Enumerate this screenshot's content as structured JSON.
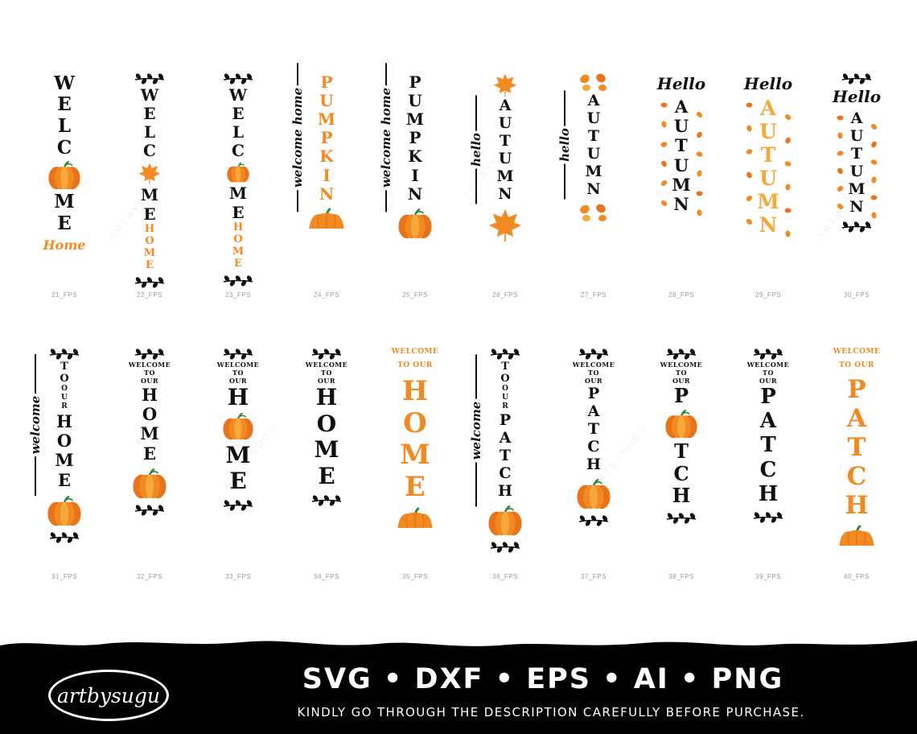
{
  "colors": {
    "black": "#111111",
    "orange": "#f28a22",
    "light_orange": "#f6a93a",
    "deep_orange": "#e8731b",
    "green": "#2e8b35",
    "caption": "#9a9a9a",
    "footer": "#000000"
  },
  "watermark": "ARTBYSUGU",
  "designs": [
    {
      "id": "21_FPS",
      "top": [],
      "words": [
        {
          "text": "WELC",
          "size": 23,
          "color": "black"
        },
        {
          "icon": "pumpkin-icon",
          "w": 40
        },
        {
          "text": "ME",
          "size": 23,
          "color": "black"
        }
      ],
      "script_bottom": "Home",
      "bottom": []
    },
    {
      "id": "22_FPS",
      "top": [
        "laurel-icon"
      ],
      "words": [
        {
          "text": "WELC",
          "size": 20,
          "color": "black"
        },
        {
          "icon": "maple-leaf-icon",
          "w": 28
        },
        {
          "text": "ME",
          "size": 20,
          "color": "black"
        },
        {
          "text": "HOME",
          "size": 13,
          "color": "orange"
        }
      ],
      "bottom": [
        "laurel-icon"
      ]
    },
    {
      "id": "23_FPS",
      "top": [
        "laurel-icon"
      ],
      "words": [
        {
          "text": "WELC",
          "size": 20,
          "color": "black"
        },
        {
          "icon": "pumpkin-icon",
          "w": 28
        },
        {
          "text": "ME",
          "size": 20,
          "color": "black"
        },
        {
          "text": "HOME",
          "size": 13,
          "color": "orange"
        }
      ],
      "bottom": [
        "laurel-icon"
      ]
    },
    {
      "id": "24_FPS",
      "side": "welcome home",
      "words": [
        {
          "text": "PUMPKIN",
          "size": 20,
          "color": "orange"
        }
      ],
      "bottom": [
        "pumpkin-half-icon"
      ]
    },
    {
      "id": "25_FPS",
      "side": "welcome home",
      "words": [
        {
          "text": "PUMPKIN",
          "size": 20,
          "color": "black"
        }
      ],
      "bottom": [
        "pumpkin-icon"
      ]
    },
    {
      "id": "26_FPS",
      "top": [
        "maple-leaf-icon"
      ],
      "side": "hello",
      "words": [
        {
          "text": "AUTUMN",
          "size": 19,
          "color": "black"
        }
      ],
      "bottom": [
        "maple-leaf-icon"
      ]
    },
    {
      "id": "27_FPS",
      "top": [
        "leaves-icon"
      ],
      "side": "hello",
      "words": [
        {
          "text": "AUTUMN",
          "size": 19,
          "color": "black"
        }
      ],
      "bottom": [
        "leaves-icon"
      ]
    },
    {
      "id": "28_FPS",
      "script_top": "Hello",
      "words": [
        {
          "text": "AUTUMN",
          "size": 21,
          "color": "black"
        }
      ],
      "scatter": true,
      "bottom": []
    },
    {
      "id": "29_FPS",
      "script_top": "Hello",
      "words": [
        {
          "text": "AUTUMN",
          "size": 25,
          "color": "light_orange"
        }
      ],
      "scatter": true,
      "bottom": []
    },
    {
      "id": "30_FPS",
      "top": [
        "laurel-icon"
      ],
      "script_top": "Hello",
      "words": [
        {
          "text": "AUTUMN",
          "size": 19,
          "color": "black"
        }
      ],
      "scatter": true,
      "bottom": [
        "laurel-icon"
      ]
    },
    {
      "id": "31_FPS",
      "top": [
        "laurel-icon"
      ],
      "side": "welcome",
      "words": [
        {
          "text": "TO",
          "size": 13,
          "color": "black"
        },
        {
          "text": "OUR",
          "size": 9,
          "color": "black"
        },
        {
          "text": "HOME",
          "size": 21,
          "color": "black"
        }
      ],
      "bottom": [
        "pumpkin-icon",
        "laurel-icon"
      ]
    },
    {
      "id": "32_FPS",
      "top": [
        "laurel-icon"
      ],
      "small": [
        "WELCOME",
        "TO",
        "OUR"
      ],
      "words": [
        {
          "text": "HOME",
          "size": 21,
          "color": "black"
        }
      ],
      "bottom": [
        "pumpkin-icon",
        "laurel-icon"
      ]
    },
    {
      "id": "33_FPS",
      "top": [
        "laurel-icon"
      ],
      "small": [
        "WELCOME",
        "TO",
        "OUR"
      ],
      "words": [
        {
          "text": "H",
          "size": 28,
          "color": "black"
        },
        {
          "icon": "pumpkin-icon",
          "w": 38
        },
        {
          "text": "ME",
          "size": 28,
          "color": "black"
        }
      ],
      "bottom": [
        "laurel-icon"
      ]
    },
    {
      "id": "34_FPS",
      "top": [
        "laurel-icon"
      ],
      "small": [
        "WELCOME",
        "TO",
        "OUR"
      ],
      "words": [
        {
          "text": "HOME",
          "size": 28,
          "color": "black"
        }
      ],
      "bottom": [
        "laurel-icon"
      ]
    },
    {
      "id": "35_FPS",
      "small_orange": [
        "WELCOME",
        "TO OUR"
      ],
      "words": [
        {
          "text": "HOME",
          "size": 34,
          "color": "orange"
        }
      ],
      "bottom": [
        "pumpkin-half-icon"
      ]
    },
    {
      "id": "36_FPS",
      "top": [
        "laurel-icon"
      ],
      "side": "welcome",
      "words": [
        {
          "text": "TO",
          "size": 13,
          "color": "black"
        },
        {
          "text": "OUR",
          "size": 9,
          "color": "black"
        },
        {
          "text": "PATCH",
          "size": 19,
          "color": "black"
        }
      ],
      "bottom": [
        "pumpkin-icon",
        "laurel-icon"
      ]
    },
    {
      "id": "37_FPS",
      "top": [
        "laurel-icon"
      ],
      "small": [
        "WELCOME",
        "TO",
        "OUR"
      ],
      "words": [
        {
          "text": "PATCH",
          "size": 19,
          "color": "black"
        }
      ],
      "bottom": [
        "pumpkin-icon",
        "laurel-icon"
      ]
    },
    {
      "id": "38_FPS",
      "top": [
        "laurel-icon"
      ],
      "small": [
        "WELCOME",
        "TO",
        "OUR"
      ],
      "words": [
        {
          "text": "P",
          "size": 24,
          "color": "black"
        },
        {
          "icon": "pumpkin-icon",
          "w": 40
        },
        {
          "text": "TCH",
          "size": 24,
          "color": "black"
        }
      ],
      "bottom": [
        "laurel-icon"
      ]
    },
    {
      "id": "39_FPS",
      "top": [
        "laurel-icon"
      ],
      "small": [
        "WELCOME",
        "TO",
        "OUR"
      ],
      "words": [
        {
          "text": "PATCH",
          "size": 26,
          "color": "black"
        }
      ],
      "bottom": [
        "laurel-icon"
      ]
    },
    {
      "id": "40_FPS",
      "small_orange": [
        "WELCOME",
        "TO OUR"
      ],
      "words": [
        {
          "text": "PATCH",
          "size": 31,
          "color": "orange"
        }
      ],
      "bottom": [
        "pumpkin-half-icon"
      ]
    }
  ],
  "footer": {
    "logo_text": "artbysugu",
    "formats": "SVG • DXF • EPS • AI • PNG",
    "notice": "KINDLY GO THROUGH THE DESCRIPTION CAREFULLY BEFORE PURCHASE."
  }
}
